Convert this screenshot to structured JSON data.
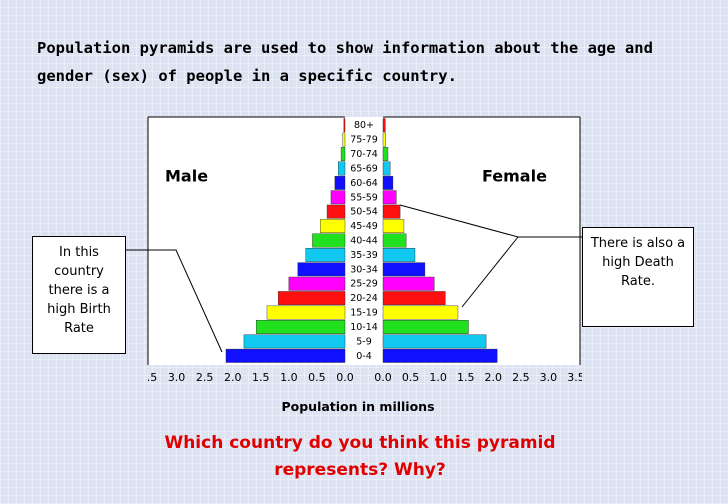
{
  "chart_data": {
    "type": "pyramid",
    "title": "Population pyramids are used to show information about the age and gender (sex) of people in a specific country.",
    "xlabel": "Population in millions",
    "question": "Which country do you think this pyramid represents?  Why?",
    "annotations": [
      "In this country there is a high Birth Rate",
      "There is also a high Death Rate."
    ],
    "categories": [
      "0-4",
      "5-9",
      "10-14",
      "15-19",
      "20-24",
      "25-29",
      "30-34",
      "35-39",
      "40-44",
      "45-49",
      "50-54",
      "55-59",
      "60-64",
      "65-69",
      "70-74",
      "75-79",
      "80+"
    ],
    "colors": [
      "#1010ff",
      "#10c8f0",
      "#20e020",
      "#ffff00",
      "#ff1010",
      "#ff00ff",
      "#1010ff",
      "#10c8f0",
      "#20e020",
      "#ffff00",
      "#ff1010",
      "#ff00ff",
      "#1010ff",
      "#10c8f0",
      "#20e020",
      "#ffff00",
      "#ff1010"
    ],
    "series": [
      {
        "name": "Male",
        "values": [
          2.12,
          1.8,
          1.58,
          1.39,
          1.19,
          1.0,
          0.84,
          0.7,
          0.58,
          0.44,
          0.32,
          0.25,
          0.18,
          0.12,
          0.07,
          0.04,
          0.02
        ]
      },
      {
        "name": "Female",
        "values": [
          2.07,
          1.87,
          1.55,
          1.36,
          1.13,
          0.93,
          0.76,
          0.58,
          0.42,
          0.38,
          0.31,
          0.24,
          0.18,
          0.13,
          0.09,
          0.05,
          0.04
        ]
      }
    ],
    "xlim": [
      0,
      3.5
    ],
    "xticks": [
      {
        "value": 0,
        "label": "0.0"
      },
      {
        "value": 0.5,
        "label": "0.5"
      },
      {
        "value": 1,
        "label": "1.0"
      },
      {
        "value": 1.5,
        "label": "1.5"
      },
      {
        "value": 2,
        "label": "2.0"
      },
      {
        "value": 2.5,
        "label": "2.5"
      },
      {
        "value": 3,
        "label": "3.0"
      },
      {
        "value": 3.5,
        "label": "3.5"
      }
    ]
  }
}
